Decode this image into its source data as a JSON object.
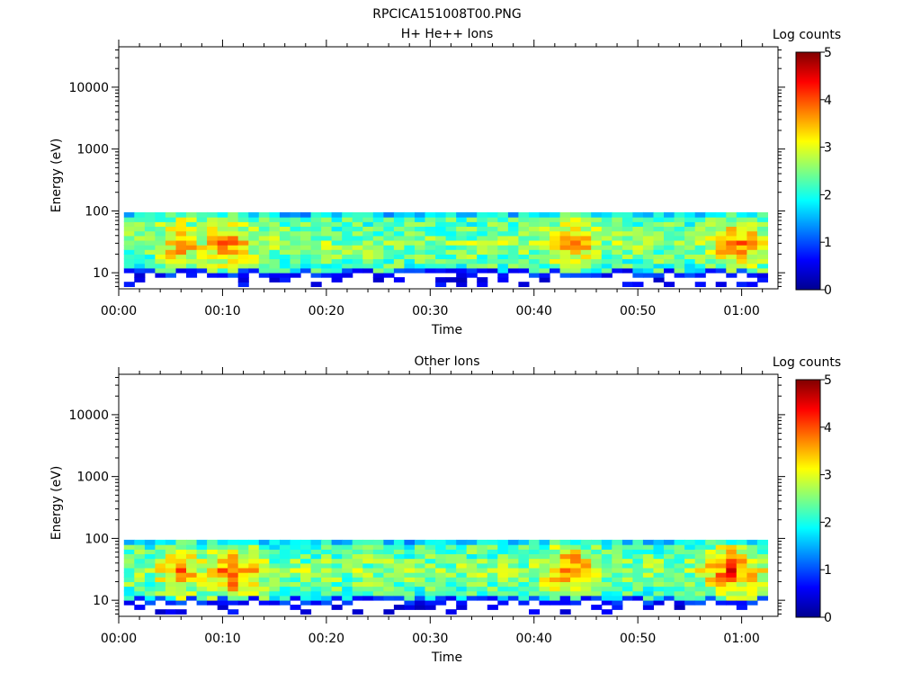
{
  "figure": {
    "title": "RPCICA151008T00.PNG"
  },
  "chart_data": [
    {
      "type": "heatmap",
      "title": "H+ He++ Ions",
      "xlabel": "Time",
      "ylabel": "Energy (eV)",
      "xticks": [
        "00:00",
        "00:10",
        "00:20",
        "00:30",
        "00:40",
        "00:50",
        "01:00"
      ],
      "xlim_minutes": [
        0,
        63.5
      ],
      "yscale": "log",
      "ylim": [
        5.5,
        45000
      ],
      "yticks": [
        "10",
        "100",
        "1000",
        "10000"
      ],
      "colorbar": {
        "label": "Log counts",
        "range": [
          0,
          5
        ],
        "ticks": [
          "0",
          "1",
          "2",
          "3",
          "4",
          "5"
        ]
      },
      "energy_range_eV": [
        6,
        95
      ],
      "time_range_minutes": [
        0.5,
        62.5
      ],
      "high_intensity_regions": [
        {
          "minutes": [
            4,
            7
          ],
          "log_counts": 3.5
        },
        {
          "minutes": [
            8,
            12
          ],
          "log_counts": 3.6
        },
        {
          "minutes": [
            41,
            45
          ],
          "log_counts": 3.7
        },
        {
          "minutes": [
            57,
            61
          ],
          "log_counts": 3.8
        }
      ]
    },
    {
      "type": "heatmap",
      "title": "Other Ions",
      "xlabel": "Time",
      "ylabel": "Energy (eV)",
      "xticks": [
        "00:00",
        "00:10",
        "00:20",
        "00:30",
        "00:40",
        "00:50",
        "01:00"
      ],
      "xlim_minutes": [
        0,
        63.5
      ],
      "yscale": "log",
      "ylim": [
        5.5,
        45000
      ],
      "yticks": [
        "10",
        "100",
        "1000",
        "10000"
      ],
      "colorbar": {
        "label": "Log counts",
        "range": [
          0,
          5
        ],
        "ticks": [
          "0",
          "1",
          "2",
          "3",
          "4",
          "5"
        ]
      },
      "energy_range_eV": [
        6,
        95
      ],
      "time_range_minutes": [
        0.5,
        62.5
      ],
      "high_intensity_regions": [
        {
          "minutes": [
            4,
            7
          ],
          "log_counts": 3.6
        },
        {
          "minutes": [
            8,
            13
          ],
          "log_counts": 3.9
        },
        {
          "minutes": [
            41,
            45
          ],
          "log_counts": 4.0
        },
        {
          "minutes": [
            56,
            61
          ],
          "log_counts": 4.0
        }
      ]
    }
  ]
}
